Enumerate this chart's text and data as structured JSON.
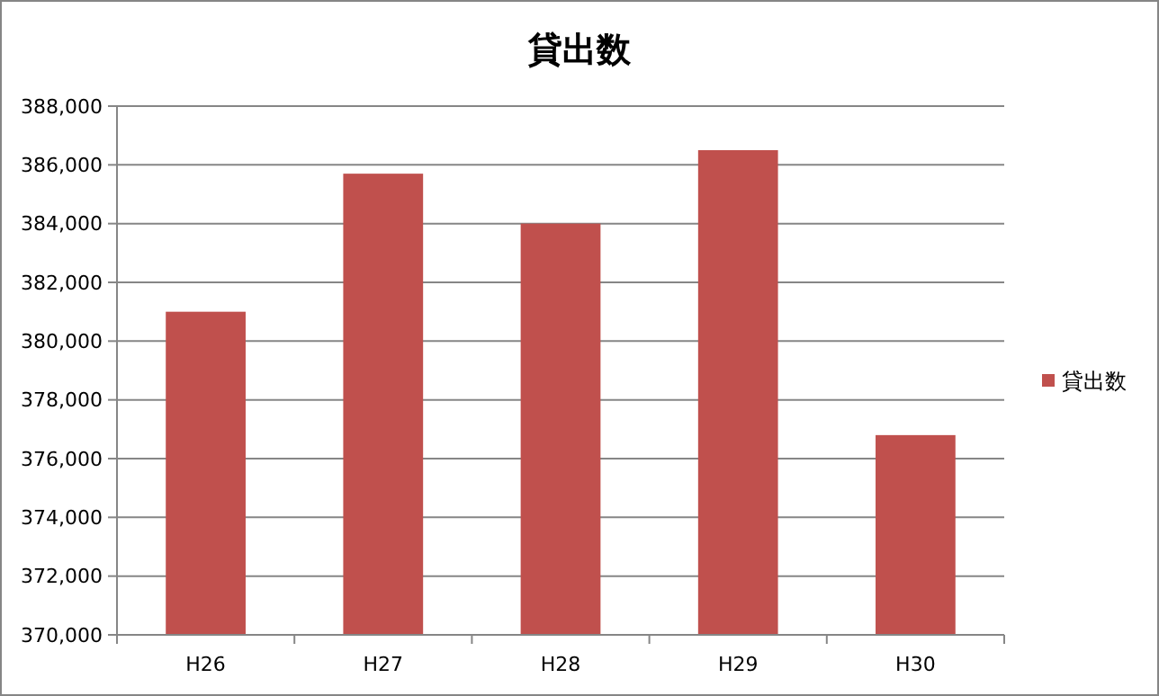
{
  "chart_data": {
    "type": "bar",
    "title": "貸出数",
    "categories": [
      "H26",
      "H27",
      "H28",
      "H29",
      "H30"
    ],
    "series": [
      {
        "name": "貸出数",
        "color": "#c0504d",
        "values": [
          381000,
          385700,
          384000,
          386500,
          376800
        ]
      }
    ],
    "ylim": [
      370000,
      388000
    ],
    "yticks": [
      {
        "value": 370000,
        "label": "370,000"
      },
      {
        "value": 372000,
        "label": "372,000"
      },
      {
        "value": 374000,
        "label": "374,000"
      },
      {
        "value": 376000,
        "label": "376,000"
      },
      {
        "value": 378000,
        "label": "378,000"
      },
      {
        "value": 380000,
        "label": "380,000"
      },
      {
        "value": 382000,
        "label": "382,000"
      },
      {
        "value": 384000,
        "label": "384,000"
      },
      {
        "value": 386000,
        "label": "386,000"
      },
      {
        "value": 388000,
        "label": "388,000"
      }
    ],
    "grid": "y",
    "legend": "right"
  }
}
